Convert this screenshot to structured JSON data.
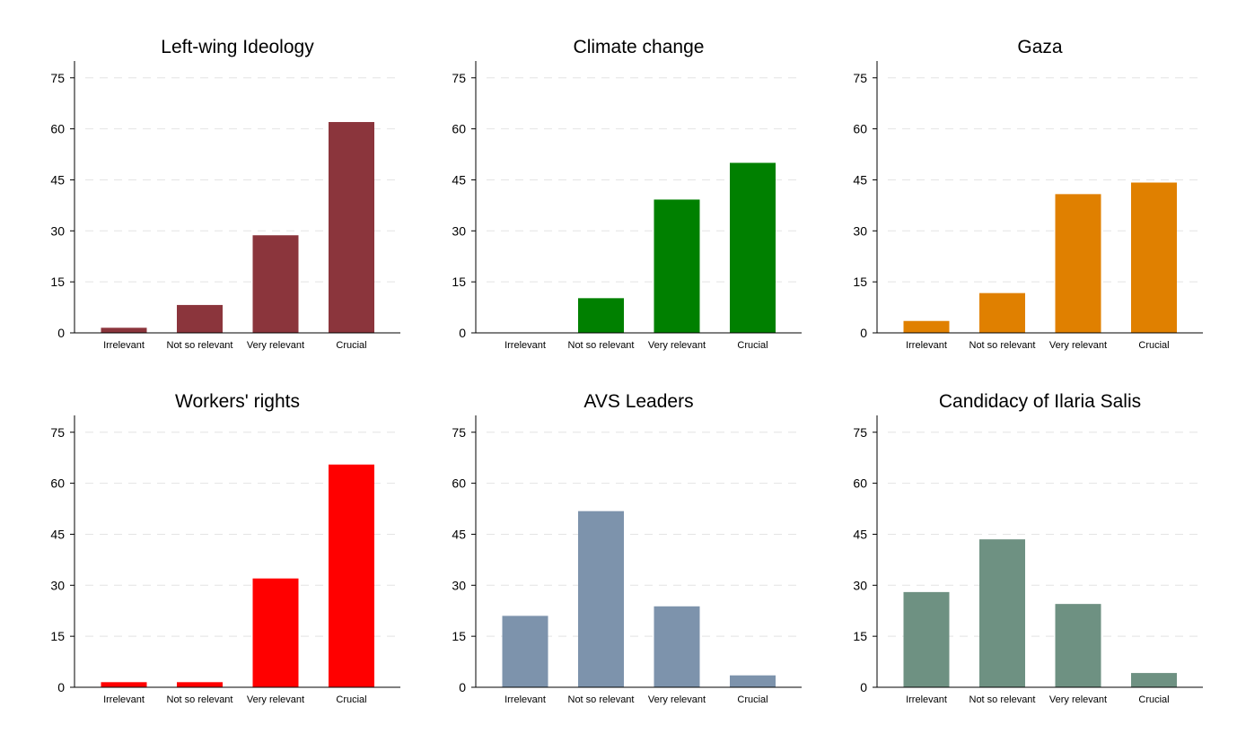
{
  "chart_data": [
    {
      "type": "bar",
      "title": "Left-wing Ideology",
      "categories": [
        "Irrelevant",
        "Not so relevant",
        "Very relevant",
        "Crucial"
      ],
      "values": [
        1.5,
        8.2,
        28.7,
        62.0
      ],
      "ylim": [
        0,
        80
      ],
      "yticks": [
        0,
        15,
        30,
        45,
        60,
        75
      ],
      "color": "#8B353C",
      "grid": "dashed-horizontal",
      "legend": "none"
    },
    {
      "type": "bar",
      "title": "Climate change",
      "categories": [
        "Irrelevant",
        "Not so relevant",
        "Very relevant",
        "Crucial"
      ],
      "values": [
        0,
        10.2,
        39.2,
        50.0
      ],
      "ylim": [
        0,
        80
      ],
      "yticks": [
        0,
        15,
        30,
        45,
        60,
        75
      ],
      "color": "#008000",
      "grid": "dashed-horizontal",
      "legend": "none"
    },
    {
      "type": "bar",
      "title": "Gaza",
      "categories": [
        "Irrelevant",
        "Not so relevant",
        "Very relevant",
        "Crucial"
      ],
      "values": [
        3.5,
        11.7,
        40.8,
        44.2
      ],
      "ylim": [
        0,
        80
      ],
      "yticks": [
        0,
        15,
        30,
        45,
        60,
        75
      ],
      "color": "#E08000",
      "grid": "dashed-horizontal",
      "legend": "none"
    },
    {
      "type": "bar",
      "title": "Workers' rights",
      "categories": [
        "Irrelevant",
        "Not so relevant",
        "Very relevant",
        "Crucial"
      ],
      "values": [
        1.5,
        1.5,
        32.0,
        65.5
      ],
      "ylim": [
        0,
        80
      ],
      "yticks": [
        0,
        15,
        30,
        45,
        60,
        75
      ],
      "color": "#FF0000",
      "grid": "dashed-horizontal",
      "legend": "none"
    },
    {
      "type": "bar",
      "title": "AVS Leaders",
      "categories": [
        "Irrelevant",
        "Not so relevant",
        "Very relevant",
        "Crucial"
      ],
      "values": [
        21.0,
        51.8,
        23.8,
        3.5
      ],
      "ylim": [
        0,
        80
      ],
      "yticks": [
        0,
        15,
        30,
        45,
        60,
        75
      ],
      "color": "#7D93AC",
      "grid": "dashed-horizontal",
      "legend": "none"
    },
    {
      "type": "bar",
      "title": "Candidacy of Ilaria Salis",
      "categories": [
        "Irrelevant",
        "Not so relevant",
        "Very relevant",
        "Crucial"
      ],
      "values": [
        28.0,
        43.5,
        24.5,
        4.2
      ],
      "ylim": [
        0,
        80
      ],
      "yticks": [
        0,
        15,
        30,
        45,
        60,
        75
      ],
      "color": "#6E9182",
      "grid": "dashed-horizontal",
      "legend": "none"
    }
  ]
}
